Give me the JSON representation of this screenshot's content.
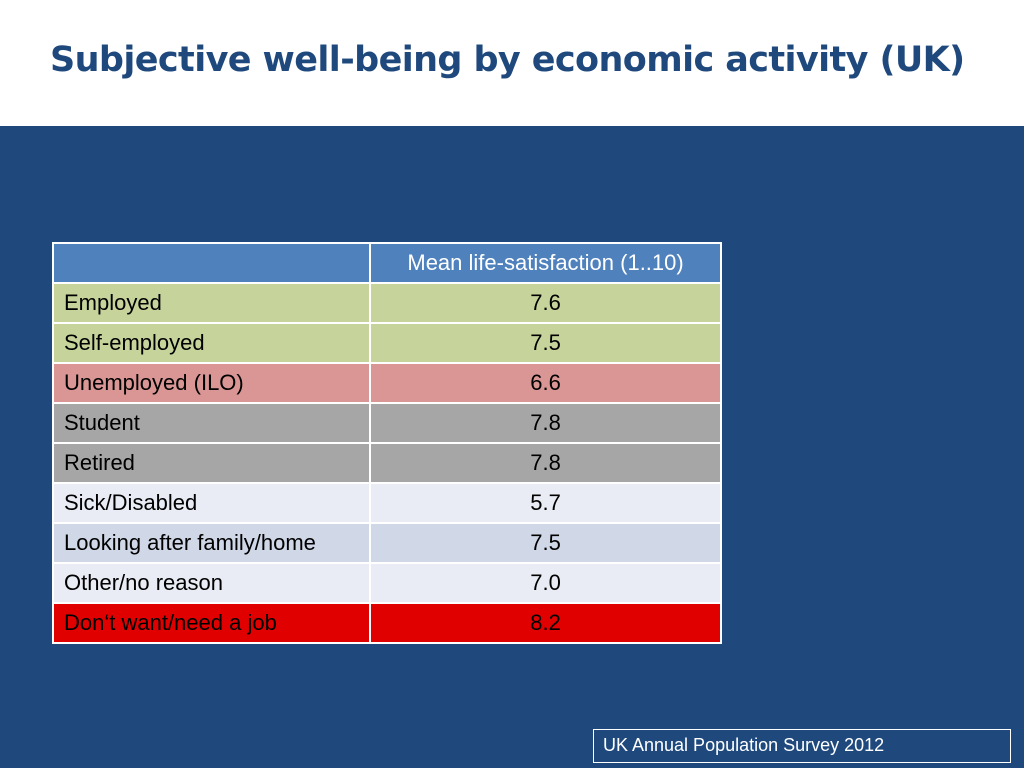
{
  "slide": {
    "title": "Subjective well-being by economic activity (UK)",
    "source": "UK Annual Population Survey 2012"
  },
  "colors": {
    "title_text": "#1f497d",
    "background": "#1f497d",
    "header_row": "#4f81bd",
    "employed_rows": "#c6d49c",
    "unemployed_row": "#d99694",
    "inactive_gray_rows": "#a6a6a6",
    "light_rows": "#e9ecf5",
    "light_blue_row": "#d0d8e8",
    "highlight_row": "#e00000"
  },
  "table": {
    "header": {
      "label": "",
      "value": "Mean life-satisfaction (1..10)"
    },
    "rows": [
      {
        "label": "Employed",
        "value": "7.6"
      },
      {
        "label": "Self-employed",
        "value": "7.5"
      },
      {
        "label": "Unemployed (ILO)",
        "value": "6.6"
      },
      {
        "label": "Student",
        "value": "7.8"
      },
      {
        "label": "Retired",
        "value": "7.8"
      },
      {
        "label": "Sick/Disabled",
        "value": "5.7"
      },
      {
        "label": "Looking after family/home",
        "value": "7.5"
      },
      {
        "label": "Other/no reason",
        "value": "7.0"
      },
      {
        "label": "Don‘t want/need a job",
        "value": "8.2"
      }
    ]
  }
}
